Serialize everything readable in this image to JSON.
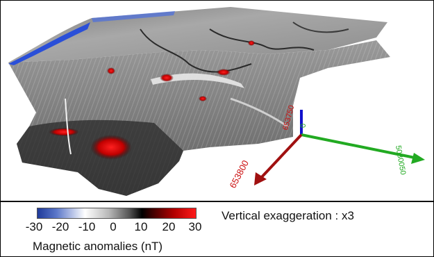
{
  "figure": {
    "colorbar": {
      "ticks": [
        "-30",
        "-20",
        "-10",
        "0",
        "10",
        "20",
        "30"
      ],
      "title": "Magnetic anomalies (nT)",
      "colors": [
        "#1f3a9a",
        "#ffffff",
        "#000000",
        "#b10000",
        "#ff1a1a"
      ]
    },
    "vertical_exaggeration": "Vertical exaggeration : x3",
    "axes": {
      "green_label": "5080050",
      "red_label_top": "653750",
      "red_label_bottom": "653800",
      "blue_label": "0",
      "colors": {
        "x": "#cc1111",
        "y": "#22aa22",
        "z": "#1111cc"
      }
    }
  }
}
